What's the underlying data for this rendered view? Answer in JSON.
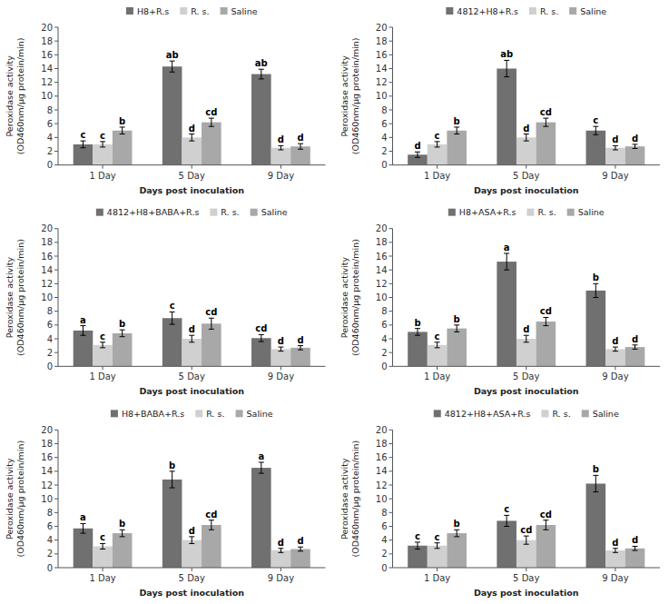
{
  "chart_data": [
    {
      "type": "bar",
      "legend": "top",
      "grid": false,
      "xlabel": "Days post inoculation",
      "ylabel": "Peroxidase activity\n(OD460nm/µg protein/min)",
      "categories": [
        "1 Day",
        "5 Day",
        "9 Day"
      ],
      "ylim": [
        0,
        20
      ],
      "yticks": [
        0,
        2,
        4,
        6,
        8,
        10,
        12,
        14,
        16,
        18,
        20
      ],
      "series": [
        {
          "name": "H8+R.s",
          "color": "#707070",
          "values": [
            3.0,
            14.3,
            13.2
          ],
          "errors": [
            0.5,
            0.8,
            0.7
          ],
          "annotations": [
            "c",
            "ab",
            "ab"
          ]
        },
        {
          "name": "R. s.",
          "color": "#d0d0d0",
          "values": [
            3.0,
            4.0,
            2.5
          ],
          "errors": [
            0.4,
            0.5,
            0.3
          ],
          "annotations": [
            "c",
            "d",
            "d"
          ]
        },
        {
          "name": "Saline",
          "color": "#a8a8a8",
          "values": [
            5.0,
            6.2,
            2.7
          ],
          "errors": [
            0.5,
            0.6,
            0.4
          ],
          "annotations": [
            "b",
            "cd",
            "d"
          ]
        }
      ]
    },
    {
      "type": "bar",
      "legend": "top",
      "grid": false,
      "xlabel": "Days post inoculation",
      "ylabel": "Peroxidase activity\n(OD460nm/µg protein/min)",
      "categories": [
        "1 Day",
        "5 Day",
        "9 Day"
      ],
      "ylim": [
        0,
        20
      ],
      "yticks": [
        0,
        2,
        4,
        6,
        8,
        10,
        12,
        14,
        16,
        18,
        20
      ],
      "series": [
        {
          "name": "4812+H8+R.s",
          "color": "#707070",
          "values": [
            1.5,
            14.0,
            5.0
          ],
          "errors": [
            0.4,
            1.2,
            0.6
          ],
          "annotations": [
            "d",
            "ab",
            "c"
          ]
        },
        {
          "name": "R. s.",
          "color": "#d0d0d0",
          "values": [
            3.0,
            4.0,
            2.5
          ],
          "errors": [
            0.4,
            0.5,
            0.3
          ],
          "annotations": [
            "c",
            "d",
            "d"
          ]
        },
        {
          "name": "Saline",
          "color": "#a8a8a8",
          "values": [
            5.0,
            6.2,
            2.7
          ],
          "errors": [
            0.5,
            0.6,
            0.3
          ],
          "annotations": [
            "b",
            "cd",
            "d"
          ]
        }
      ]
    },
    {
      "type": "bar",
      "legend": "top",
      "grid": false,
      "xlabel": "Days post inoculation",
      "ylabel": "Peroxidase activity\n(OD460nm/µg protein/min)",
      "categories": [
        "1 Day",
        "5 Day",
        "9 Day"
      ],
      "ylim": [
        0,
        20
      ],
      "yticks": [
        0,
        2,
        4,
        6,
        8,
        10,
        12,
        14,
        16,
        18,
        20
      ],
      "series": [
        {
          "name": "4812+H8+BABA+R.s",
          "color": "#707070",
          "values": [
            5.2,
            7.0,
            4.1
          ],
          "errors": [
            0.7,
            0.9,
            0.5
          ],
          "annotations": [
            "a",
            "c",
            "cd"
          ]
        },
        {
          "name": "R. s.",
          "color": "#d0d0d0",
          "values": [
            3.1,
            4.0,
            2.5
          ],
          "errors": [
            0.4,
            0.5,
            0.3
          ],
          "annotations": [
            "c",
            "d",
            "d"
          ]
        },
        {
          "name": "Saline",
          "color": "#a8a8a8",
          "values": [
            4.8,
            6.2,
            2.7
          ],
          "errors": [
            0.5,
            0.8,
            0.3
          ],
          "annotations": [
            "b",
            "cd",
            "d"
          ]
        }
      ]
    },
    {
      "type": "bar",
      "legend": "top",
      "grid": false,
      "xlabel": "Days post inoculation",
      "ylabel": "Peroxidase activity\n(OD460nm/µg protein/min)",
      "categories": [
        "1 Day",
        "5 Day",
        "9 Day"
      ],
      "ylim": [
        0,
        20
      ],
      "yticks": [
        0,
        2,
        4,
        6,
        8,
        10,
        12,
        14,
        16,
        18,
        20
      ],
      "series": [
        {
          "name": "H8+ASA+R.s",
          "color": "#707070",
          "values": [
            5.0,
            15.2,
            11.0
          ],
          "errors": [
            0.5,
            1.2,
            1.0
          ],
          "annotations": [
            "b",
            "a",
            "b"
          ]
        },
        {
          "name": "R. s.",
          "color": "#d0d0d0",
          "values": [
            3.1,
            4.0,
            2.5
          ],
          "errors": [
            0.4,
            0.5,
            0.3
          ],
          "annotations": [
            "c",
            "d",
            "d"
          ]
        },
        {
          "name": "Saline",
          "color": "#a8a8a8",
          "values": [
            5.5,
            6.5,
            2.8
          ],
          "errors": [
            0.5,
            0.6,
            0.3
          ],
          "annotations": [
            "b",
            "cd",
            "d"
          ]
        }
      ]
    },
    {
      "type": "bar",
      "legend": "top",
      "grid": false,
      "xlabel": "Days post inoculation",
      "ylabel": "Peroxidase activity\n(OD460nm/µg protein/min)",
      "categories": [
        "1 Day",
        "5 Day",
        "9 Day"
      ],
      "ylim": [
        0,
        20
      ],
      "yticks": [
        0,
        2,
        4,
        6,
        8,
        10,
        12,
        14,
        16,
        18,
        20
      ],
      "series": [
        {
          "name": "H8+BABA+R.s",
          "color": "#707070",
          "values": [
            5.7,
            12.8,
            14.5
          ],
          "errors": [
            0.7,
            1.2,
            0.8
          ],
          "annotations": [
            "a",
            "b",
            "a"
          ]
        },
        {
          "name": "R. s.",
          "color": "#d0d0d0",
          "values": [
            3.1,
            4.0,
            2.5
          ],
          "errors": [
            0.4,
            0.5,
            0.3
          ],
          "annotations": [
            "c",
            "d",
            "d"
          ]
        },
        {
          "name": "Saline",
          "color": "#a8a8a8",
          "values": [
            5.0,
            6.2,
            2.7
          ],
          "errors": [
            0.5,
            0.7,
            0.3
          ],
          "annotations": [
            "b",
            "cd",
            "d"
          ]
        }
      ]
    },
    {
      "type": "bar",
      "legend": "top",
      "grid": false,
      "xlabel": "Days post inoculation",
      "ylabel": "Peroxidase activity\n(OD460nm/µg protein/min)",
      "categories": [
        "1 Day",
        "5 Day",
        "9 Day"
      ],
      "ylim": [
        0,
        20
      ],
      "yticks": [
        0,
        2,
        4,
        6,
        8,
        10,
        12,
        14,
        16,
        18,
        20
      ],
      "series": [
        {
          "name": "4812+H8+ASA+R.s",
          "color": "#707070",
          "values": [
            3.2,
            6.8,
            12.2
          ],
          "errors": [
            0.5,
            0.8,
            1.2
          ],
          "annotations": [
            "c",
            "c",
            "b"
          ]
        },
        {
          "name": "R. s.",
          "color": "#d0d0d0",
          "values": [
            3.2,
            4.0,
            2.5
          ],
          "errors": [
            0.4,
            0.6,
            0.3
          ],
          "annotations": [
            "c",
            "cd",
            "d"
          ]
        },
        {
          "name": "Saline",
          "color": "#a8a8a8",
          "values": [
            5.0,
            6.2,
            2.8
          ],
          "errors": [
            0.5,
            0.7,
            0.3
          ],
          "annotations": [
            "b",
            "cd",
            "d"
          ]
        }
      ]
    }
  ]
}
